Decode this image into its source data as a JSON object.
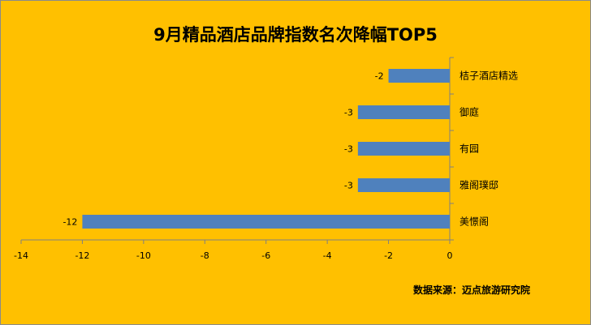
{
  "chart_data": {
    "type": "bar",
    "orientation": "horizontal",
    "title": "9月精品酒店品牌指数名次降幅TOP5",
    "categories": [
      "桔子酒店精选",
      "御庭",
      "有园",
      "雅阁璞邸",
      "美憬阁"
    ],
    "values": [
      -2,
      -3,
      -3,
      -3,
      -12
    ],
    "xlim": [
      -14,
      0
    ],
    "x_ticks": [
      -14,
      -12,
      -10,
      -8,
      -6,
      -4,
      -2,
      0
    ],
    "grid": false,
    "legend": "none",
    "bar_color": "#4F81BD",
    "background_color": "#FFC000",
    "source": "数据来源：迈点旅游研究院"
  }
}
